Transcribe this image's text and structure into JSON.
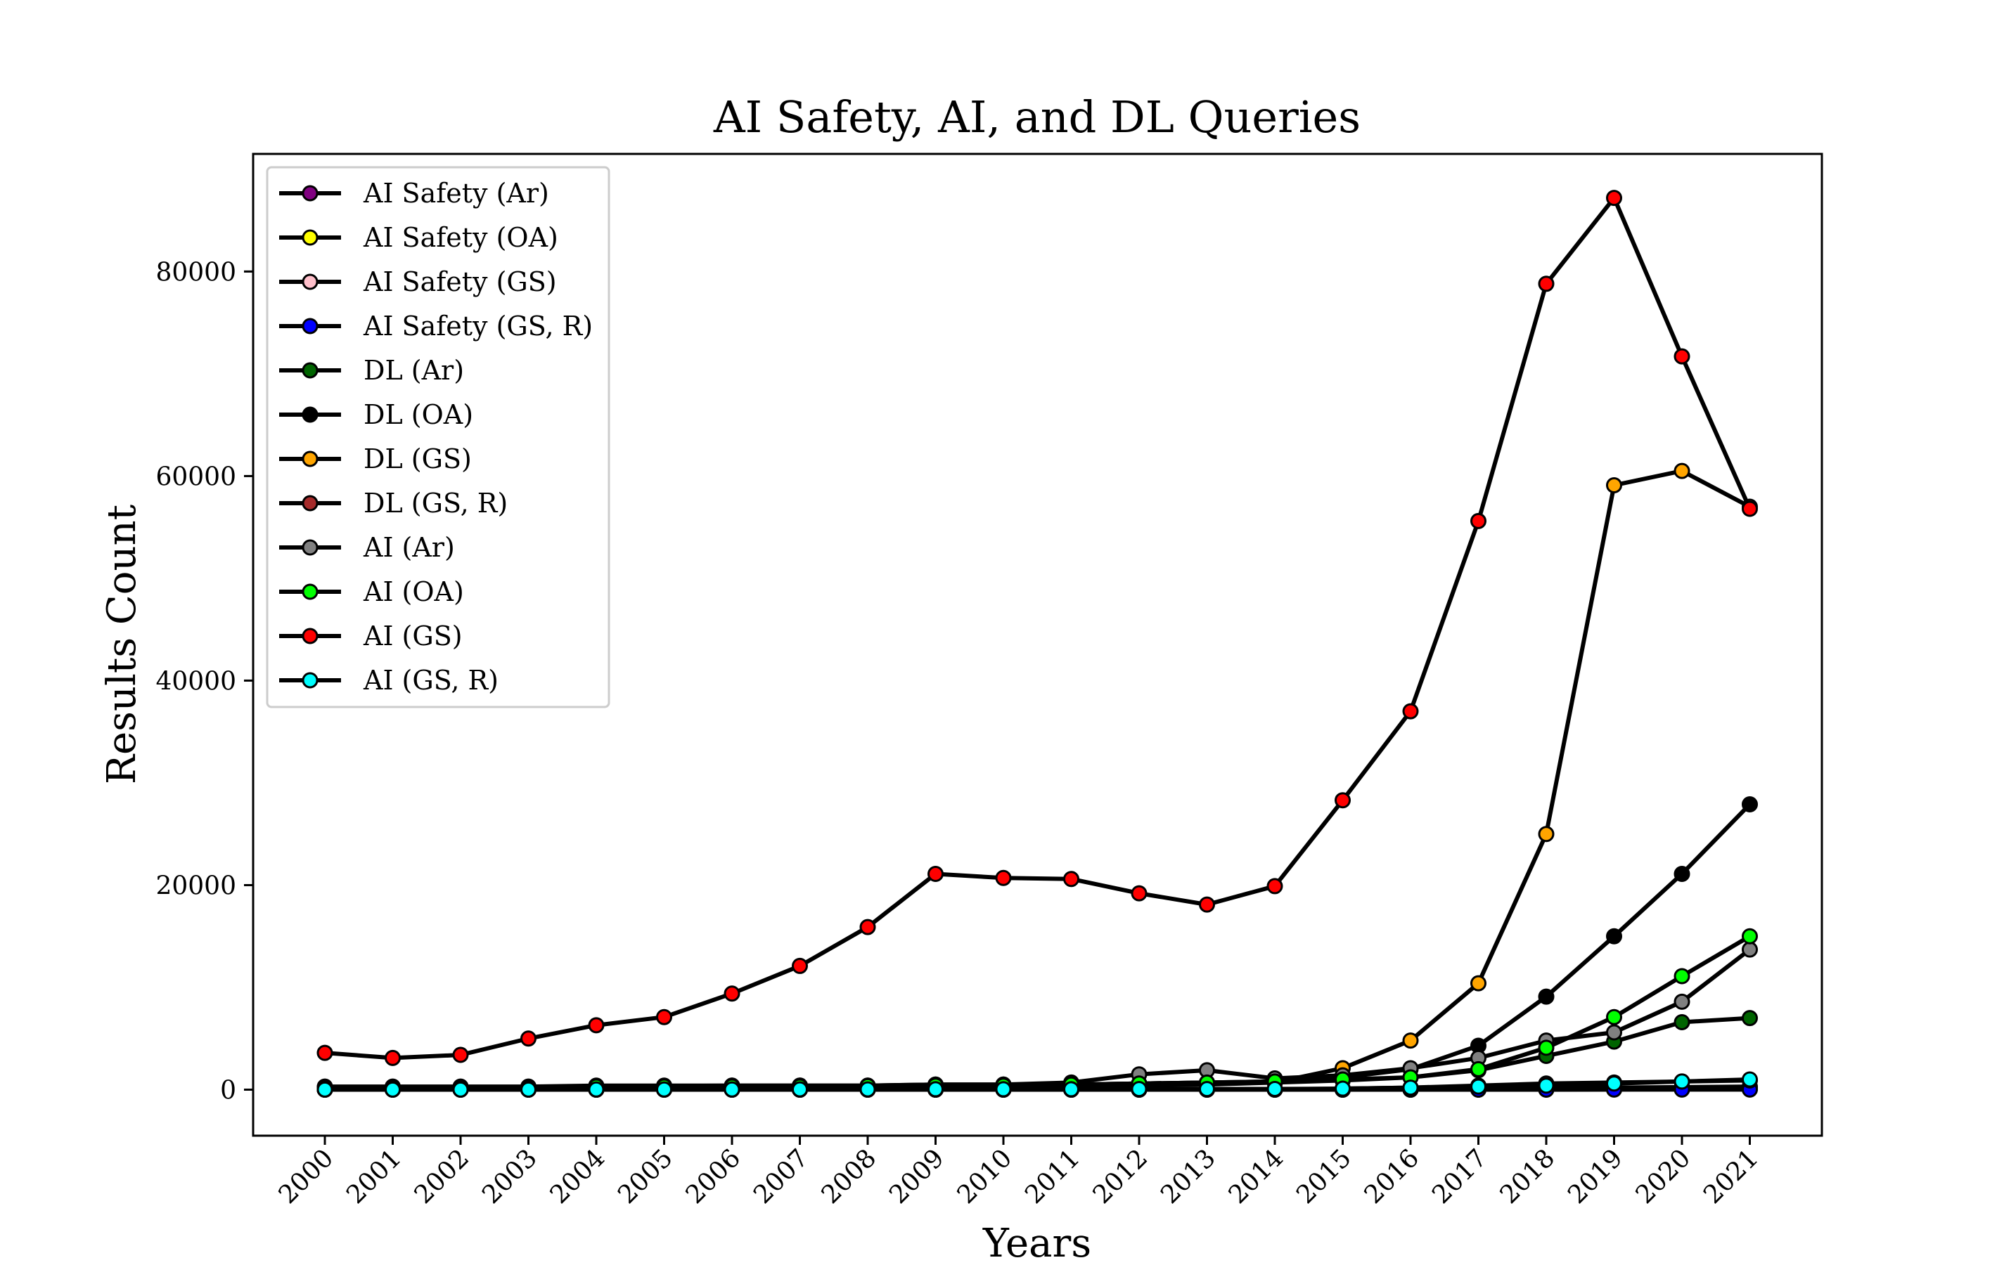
{
  "chart_data": {
    "type": "line",
    "title": "AI Safety, AI, and DL Queries",
    "xlabel": "Years",
    "ylabel": "Results Count",
    "x": [
      "2000",
      "2001",
      "2002",
      "2003",
      "2004",
      "2005",
      "2006",
      "2007",
      "2008",
      "2009",
      "2010",
      "2011",
      "2012",
      "2013",
      "2014",
      "2015",
      "2016",
      "2017",
      "2018",
      "2019",
      "2020",
      "2021"
    ],
    "ylim": [
      -4500,
      91500
    ],
    "yticks": [
      0,
      20000,
      40000,
      60000,
      80000
    ],
    "grid": false,
    "legend_position": "upper-left",
    "line_color": "#000000",
    "series": [
      {
        "name": "AI Safety (Ar)",
        "marker_color": "#800080",
        "values": [
          0,
          0,
          0,
          0,
          0,
          0,
          0,
          0,
          0,
          0,
          0,
          0,
          0,
          0,
          0,
          0,
          5,
          10,
          20,
          40,
          60,
          100
        ]
      },
      {
        "name": "AI Safety (OA)",
        "marker_color": "#ffff00",
        "values": [
          0,
          0,
          0,
          0,
          0,
          0,
          0,
          0,
          0,
          0,
          0,
          0,
          0,
          0,
          0,
          0,
          5,
          10,
          20,
          30,
          50,
          80
        ]
      },
      {
        "name": "AI Safety (GS)",
        "marker_color": "#ffc0cb",
        "values": [
          10,
          10,
          10,
          10,
          10,
          10,
          10,
          10,
          10,
          10,
          10,
          10,
          15,
          20,
          20,
          40,
          60,
          100,
          150,
          200,
          250,
          300
        ]
      },
      {
        "name": "AI Safety (GS, R)",
        "marker_color": "#0000ff",
        "values": [
          0,
          0,
          0,
          0,
          0,
          0,
          0,
          0,
          0,
          0,
          0,
          0,
          0,
          0,
          0,
          0,
          0,
          5,
          5,
          10,
          10,
          10
        ]
      },
      {
        "name": "DL (Ar)",
        "marker_color": "#006400",
        "values": [
          300,
          300,
          300,
          300,
          400,
          400,
          400,
          400,
          400,
          500,
          500,
          500,
          600,
          700,
          700,
          900,
          1200,
          1900,
          3300,
          4700,
          6600,
          7000
        ]
      },
      {
        "name": "DL (OA)",
        "marker_color": "#000000",
        "values": [
          100,
          100,
          150,
          150,
          200,
          200,
          250,
          250,
          300,
          400,
          400,
          500,
          600,
          700,
          800,
          1200,
          2000,
          4300,
          9100,
          15000,
          21100,
          27900
        ]
      },
      {
        "name": "DL (GS)",
        "marker_color": "#ffa500",
        "values": [
          100,
          100,
          100,
          100,
          100,
          100,
          150,
          150,
          200,
          200,
          250,
          300,
          400,
          500,
          700,
          2100,
          4800,
          10400,
          25000,
          59100,
          60500,
          57000
        ]
      },
      {
        "name": "DL (GS, R)",
        "marker_color": "#a52a2a",
        "values": [
          0,
          0,
          0,
          0,
          0,
          0,
          0,
          0,
          0,
          0,
          0,
          10,
          20,
          30,
          40,
          100,
          200,
          400,
          600,
          700,
          800,
          900
        ]
      },
      {
        "name": "AI (Ar)",
        "marker_color": "#808080",
        "values": [
          200,
          200,
          250,
          250,
          300,
          350,
          400,
          400,
          400,
          500,
          500,
          700,
          1500,
          1900,
          1100,
          1400,
          2100,
          3100,
          4800,
          5600,
          8600,
          13700
        ]
      },
      {
        "name": "AI (OA)",
        "marker_color": "#00ff00",
        "values": [
          200,
          200,
          200,
          200,
          300,
          300,
          300,
          300,
          350,
          400,
          400,
          500,
          600,
          700,
          800,
          1000,
          1200,
          2000,
          4100,
          7100,
          11100,
          15000
        ]
      },
      {
        "name": "AI (GS)",
        "marker_color": "#ff0000",
        "values": [
          3600,
          3100,
          3400,
          5000,
          6300,
          7100,
          9400,
          12100,
          15900,
          21100,
          20700,
          20600,
          19200,
          18100,
          19900,
          28300,
          37000,
          55600,
          78800,
          87200,
          71700,
          56800
        ]
      },
      {
        "name": "AI (GS, R)",
        "marker_color": "#00ffff",
        "values": [
          10,
          10,
          10,
          10,
          20,
          20,
          20,
          30,
          30,
          40,
          40,
          40,
          60,
          60,
          70,
          100,
          200,
          300,
          400,
          600,
          800,
          1000
        ]
      }
    ]
  }
}
